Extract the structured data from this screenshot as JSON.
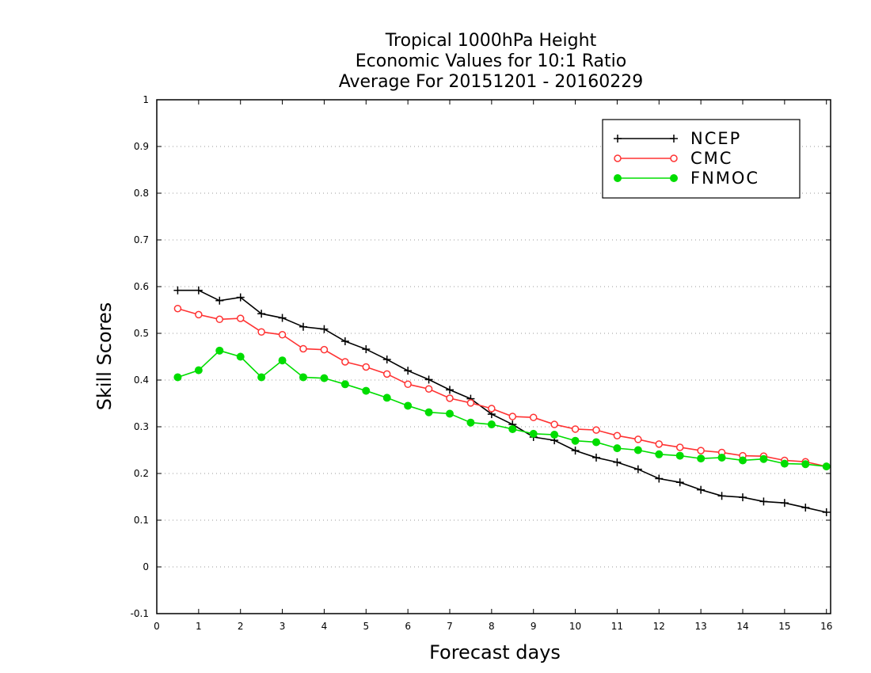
{
  "chart_data": {
    "type": "line",
    "title_lines": [
      "Tropical 1000hPa Height",
      "Economic Values for 10:1 Ratio",
      "Average For 20151201 - 20160229"
    ],
    "xlabel": "Forecast days",
    "ylabel": "Skill Scores",
    "xlim": [
      0,
      16.1
    ],
    "ylim": [
      -0.1,
      1
    ],
    "x_ticks": [
      0,
      1,
      2,
      3,
      4,
      5,
      6,
      7,
      8,
      9,
      10,
      11,
      12,
      13,
      14,
      15,
      16
    ],
    "x_tick_labels": [
      "0",
      "1",
      "2",
      "3",
      "4",
      "5",
      "6",
      "7",
      "8",
      "9",
      "10",
      "11",
      "12",
      "13",
      "14",
      "15",
      "16"
    ],
    "y_ticks": [
      -0.1,
      0,
      0.1,
      0.2,
      0.3,
      0.4,
      0.5,
      0.6,
      0.7,
      0.8,
      0.9,
      1
    ],
    "y_tick_labels": [
      "-0.1",
      "0",
      "0.1",
      "0.2",
      "0.3",
      "0.4",
      "0.5",
      "0.6",
      "0.7",
      "0.8",
      "0.9",
      "1"
    ],
    "grid": true,
    "legend_position": "top-right",
    "x": [
      0.5,
      1,
      1.5,
      2,
      2.5,
      3,
      3.5,
      4,
      4.5,
      5,
      5.5,
      6,
      6.5,
      7,
      7.5,
      8,
      8.5,
      9,
      9.5,
      10,
      10.5,
      11,
      11.5,
      12,
      12.5,
      13,
      13.5,
      14,
      14.5,
      15,
      15.5,
      16
    ],
    "series": [
      {
        "name": "NCEP",
        "color": "#000000",
        "marker": "plus",
        "values": [
          0.592,
          0.592,
          0.57,
          0.577,
          0.542,
          0.533,
          0.514,
          0.509,
          0.483,
          0.466,
          0.444,
          0.42,
          0.401,
          0.379,
          0.36,
          0.327,
          0.305,
          0.278,
          0.271,
          0.249,
          0.234,
          0.224,
          0.209,
          0.189,
          0.181,
          0.165,
          0.152,
          0.149,
          0.14,
          0.137,
          0.127,
          0.117
        ]
      },
      {
        "name": "CMC",
        "color": "#ff3333",
        "marker": "open-circle",
        "values": [
          0.553,
          0.54,
          0.53,
          0.532,
          0.503,
          0.497,
          0.467,
          0.465,
          0.439,
          0.428,
          0.413,
          0.391,
          0.381,
          0.361,
          0.351,
          0.339,
          0.322,
          0.32,
          0.305,
          0.295,
          0.293,
          0.281,
          0.273,
          0.263,
          0.256,
          0.249,
          0.245,
          0.238,
          0.237,
          0.228,
          0.225,
          0.215
        ]
      },
      {
        "name": "FNMOC",
        "color": "#00dd00",
        "marker": "filled-circle",
        "values": [
          0.406,
          0.421,
          0.463,
          0.45,
          0.406,
          0.442,
          0.406,
          0.404,
          0.391,
          0.377,
          0.362,
          0.345,
          0.331,
          0.328,
          0.309,
          0.305,
          0.295,
          0.285,
          0.283,
          0.27,
          0.267,
          0.254,
          0.25,
          0.241,
          0.238,
          0.232,
          0.234,
          0.228,
          0.231,
          0.221,
          0.22,
          0.215
        ]
      }
    ]
  }
}
